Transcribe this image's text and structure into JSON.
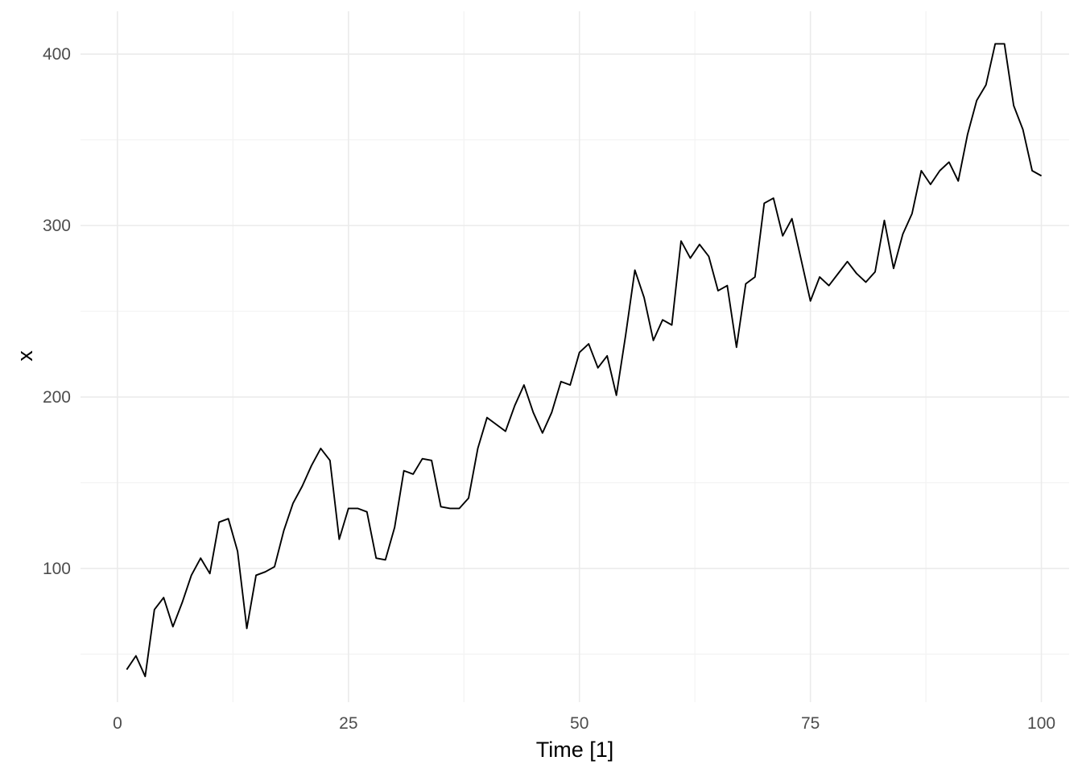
{
  "chart_data": {
    "type": "line",
    "title": "",
    "xlabel": "Time [1]",
    "ylabel": "x",
    "xlim": [
      -4,
      103
    ],
    "ylim": [
      22,
      425
    ],
    "x_ticks": [
      0,
      25,
      50,
      75,
      100
    ],
    "x_tick_labels": [
      "0",
      "25",
      "50",
      "75",
      "100"
    ],
    "y_ticks": [
      100,
      200,
      300,
      400
    ],
    "y_tick_labels": [
      "100",
      "200",
      "300",
      "400"
    ],
    "grid": true,
    "legend": "none",
    "line_color": "#000000",
    "x": [
      1,
      2,
      3,
      4,
      5,
      6,
      7,
      8,
      9,
      10,
      11,
      12,
      13,
      14,
      15,
      16,
      17,
      18,
      19,
      20,
      21,
      22,
      23,
      24,
      25,
      26,
      27,
      28,
      29,
      30,
      31,
      32,
      33,
      34,
      35,
      36,
      37,
      38,
      39,
      40,
      41,
      42,
      43,
      44,
      45,
      46,
      47,
      48,
      49,
      50,
      51,
      52,
      53,
      54,
      55,
      56,
      57,
      58,
      59,
      60,
      61,
      62,
      63,
      64,
      65,
      66,
      67,
      68,
      69,
      70,
      71,
      72,
      73,
      74,
      75,
      76,
      77,
      78,
      79,
      80,
      81,
      82,
      83,
      84,
      85,
      86,
      87,
      88,
      89,
      90,
      91,
      92,
      93,
      94,
      95,
      96,
      97,
      98,
      99,
      100
    ],
    "values": [
      41,
      49,
      37,
      76,
      83,
      66,
      80,
      96,
      106,
      97,
      127,
      129,
      110,
      65,
      96,
      98,
      101,
      122,
      138,
      148,
      160,
      170,
      163,
      117,
      135,
      135,
      133,
      106,
      105,
      124,
      157,
      155,
      164,
      163,
      136,
      135,
      135,
      141,
      170,
      188,
      184,
      180,
      195,
      207,
      191,
      179,
      191,
      209,
      207,
      226,
      231,
      217,
      224,
      201,
      236,
      274,
      258,
      233,
      245,
      242,
      291,
      281,
      289,
      282,
      262,
      265,
      229,
      266,
      270,
      313,
      316,
      294,
      304,
      280,
      256,
      270,
      265,
      272,
      279,
      272,
      267,
      273,
      303,
      275,
      295,
      307,
      332,
      324,
      332,
      337,
      326,
      353,
      373,
      382,
      406,
      406,
      370,
      356,
      332,
      329
    ]
  }
}
